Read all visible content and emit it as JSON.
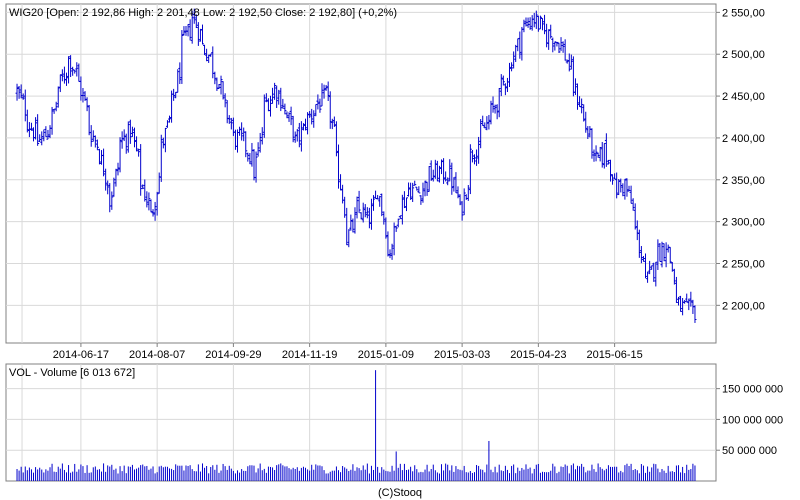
{
  "chart_data": [
    {
      "type": "ohlc",
      "title": "WIG20 [Open: 2 192,86  High: 2 201,48  Low: 2 192,50  Close: 2 192,80] (+0,2%)",
      "xlabel": "",
      "ylabel": "",
      "x_ticks": [
        "2014-06-17",
        "2014-08-07",
        "2014-09-29",
        "2014-11-19",
        "2015-01-09",
        "2015-03-03",
        "2015-04-23",
        "2015-06-15"
      ],
      "y_ticks": [
        "2 200,00",
        "2 250,00",
        "2 300,00",
        "2 350,00",
        "2 400,00",
        "2 450,00",
        "2 500,00",
        "2 550,00"
      ],
      "y_tick_values": [
        2200,
        2250,
        2300,
        2350,
        2400,
        2450,
        2500,
        2550
      ],
      "ylim": [
        2155,
        2560
      ],
      "grid": true,
      "series_color": "#0000cc",
      "close_anchors": [
        [
          "2014-05-05",
          2455
        ],
        [
          "2014-05-12",
          2420
        ],
        [
          "2014-05-19",
          2395
        ],
        [
          "2014-05-26",
          2410
        ],
        [
          "2014-06-02",
          2460
        ],
        [
          "2014-06-09",
          2495
        ],
        [
          "2014-06-16",
          2465
        ],
        [
          "2014-06-23",
          2410
        ],
        [
          "2014-06-30",
          2380
        ],
        [
          "2014-07-07",
          2325
        ],
        [
          "2014-07-14",
          2395
        ],
        [
          "2014-07-21",
          2410
        ],
        [
          "2014-07-28",
          2345
        ],
        [
          "2014-08-04",
          2305
        ],
        [
          "2014-08-11",
          2390
        ],
        [
          "2014-08-18",
          2440
        ],
        [
          "2014-08-25",
          2510
        ],
        [
          "2014-09-01",
          2545
        ],
        [
          "2014-09-08",
          2510
        ],
        [
          "2014-09-15",
          2485
        ],
        [
          "2014-09-22",
          2440
        ],
        [
          "2014-09-29",
          2400
        ],
        [
          "2014-10-06",
          2395
        ],
        [
          "2014-10-13",
          2360
        ],
        [
          "2014-10-20",
          2440
        ],
        [
          "2014-10-27",
          2460
        ],
        [
          "2014-11-03",
          2430
        ],
        [
          "2014-11-10",
          2395
        ],
        [
          "2014-11-17",
          2420
        ],
        [
          "2014-11-24",
          2440
        ],
        [
          "2014-12-01",
          2450
        ],
        [
          "2014-12-08",
          2370
        ],
        [
          "2014-12-15",
          2280
        ],
        [
          "2014-12-22",
          2315
        ],
        [
          "2014-12-29",
          2300
        ],
        [
          "2015-01-05",
          2340
        ],
        [
          "2015-01-12",
          2260
        ],
        [
          "2015-01-19",
          2315
        ],
        [
          "2015-01-26",
          2340
        ],
        [
          "2015-02-02",
          2335
        ],
        [
          "2015-02-09",
          2355
        ],
        [
          "2015-02-16",
          2360
        ],
        [
          "2015-02-23",
          2355
        ],
        [
          "2015-03-02",
          2310
        ],
        [
          "2015-03-09",
          2380
        ],
        [
          "2015-03-16",
          2405
        ],
        [
          "2015-03-23",
          2430
        ],
        [
          "2015-03-30",
          2460
        ],
        [
          "2015-04-06",
          2495
        ],
        [
          "2015-04-13",
          2530
        ],
        [
          "2015-04-20",
          2545
        ],
        [
          "2015-04-27",
          2525
        ],
        [
          "2015-05-04",
          2520
        ],
        [
          "2015-05-11",
          2505
        ],
        [
          "2015-05-18",
          2460
        ],
        [
          "2015-05-25",
          2420
        ],
        [
          "2015-06-01",
          2370
        ],
        [
          "2015-06-08",
          2385
        ],
        [
          "2015-06-15",
          2340
        ],
        [
          "2015-06-22",
          2345
        ],
        [
          "2015-06-29",
          2290
        ],
        [
          "2015-07-06",
          2225
        ],
        [
          "2015-07-13",
          2260
        ],
        [
          "2015-07-20",
          2275
        ],
        [
          "2015-07-27",
          2200
        ],
        [
          "2015-08-03",
          2193
        ]
      ]
    },
    {
      "type": "bar",
      "title": "VOL - Volume [6 013 672]",
      "xlabel": "",
      "ylabel": "",
      "y_ticks": [
        "50 000 000",
        "100 000 000",
        "150 000 000"
      ],
      "y_tick_values": [
        50000000,
        100000000,
        150000000
      ],
      "ylim": [
        0,
        190000000
      ],
      "grid": true,
      "series_color": "#0000cc",
      "typical_volume": 22000000,
      "spikes": [
        [
          "2015-01-02",
          180000000
        ],
        [
          "2015-01-16",
          48000000
        ],
        [
          "2015-03-20",
          65000000
        ]
      ]
    }
  ],
  "footer": {
    "credit": "(C)Stooq"
  }
}
